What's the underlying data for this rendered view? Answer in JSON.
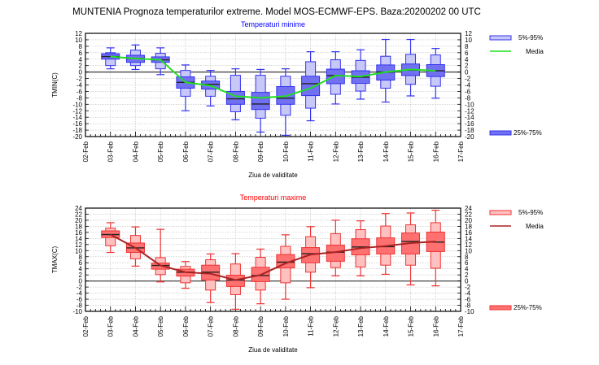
{
  "page": {
    "title": "MUNTENIA  Prognoza temperaturilor extreme.  Model MOS-ECMWF-EPS. Baza:20200202 00 UTC"
  },
  "chart_data": [
    {
      "type": "boxplot",
      "title": "Temperaturi minime",
      "title_color": "#0000ff",
      "ylabel": "TMIN(C)",
      "xlabel": "Ziua de validitate",
      "ylim": [
        -20,
        12
      ],
      "ytick_step": 2,
      "grid": true,
      "x_tick_labels": [
        "02-Feb",
        "03-Feb",
        "04-Feb",
        "05-Feb",
        "06-Feb",
        "07-Feb",
        "08-Feb",
        "09-Feb",
        "10-Feb",
        "11-Feb",
        "12-Feb",
        "13-Feb",
        "14-Feb",
        "15-Feb",
        "16-Feb",
        "17-Feb"
      ],
      "categories": [
        "03-Feb",
        "04-Feb",
        "05-Feb",
        "06-Feb",
        "07-Feb",
        "08-Feb",
        "09-Feb",
        "10-Feb",
        "11-Feb",
        "12-Feb",
        "13-Feb",
        "14-Feb",
        "15-Feb",
        "16-Feb"
      ],
      "colors": {
        "outer": "#c8c8f8",
        "inner": "#7070f0",
        "edge": "#3333ee",
        "mean": "#22dd22",
        "median": "#222222"
      },
      "legend": {
        "outer_label": "5%-95%",
        "mean_label": "Media",
        "inner_label": "25%-75%",
        "placement": "right"
      },
      "series": {
        "whisker_low": [
          1.0,
          0.8,
          -0.8,
          -12.0,
          -10.5,
          -14.8,
          -18.6,
          -19.6,
          -15.1,
          -9.9,
          -8.4,
          -9.3,
          -7.4,
          -8.1
        ],
        "p5": [
          2.0,
          2.0,
          1.0,
          -7.5,
          -7.5,
          -12.3,
          -14.3,
          -13.4,
          -11.2,
          -6.9,
          -5.9,
          -5.0,
          -3.8,
          -4.4
        ],
        "p25": [
          4.0,
          3.0,
          3.0,
          -5.0,
          -5.3,
          -10.0,
          -11.6,
          -10.0,
          -7.3,
          -3.6,
          -3.5,
          -2.5,
          -1.1,
          -1.4
        ],
        "median": [
          4.8,
          4.2,
          3.8,
          -3.2,
          -3.8,
          -8.3,
          -9.9,
          -8.1,
          -3.6,
          -1.1,
          -1.6,
          0.0,
          0.6,
          0.4
        ],
        "p75": [
          5.7,
          5.2,
          4.7,
          -1.5,
          -2.8,
          -6.0,
          -6.3,
          -4.5,
          -1.3,
          0.9,
          0.4,
          2.2,
          2.5,
          2.3
        ],
        "p95": [
          6.0,
          6.8,
          5.8,
          0.5,
          -1.3,
          -1.0,
          -1.0,
          -1.3,
          3.2,
          3.8,
          3.6,
          4.9,
          5.5,
          5.3
        ],
        "whisker_high": [
          7.5,
          8.4,
          7.5,
          2.2,
          0.5,
          1.0,
          0.8,
          1.0,
          6.3,
          6.3,
          6.9,
          10.1,
          10.1,
          7.3
        ],
        "mean": [
          4.8,
          4.2,
          3.8,
          -3.2,
          -4.2,
          -7.5,
          -8.0,
          -7.5,
          -5.0,
          -1.1,
          -1.4,
          0.0,
          0.8,
          0.4
        ]
      }
    },
    {
      "type": "boxplot",
      "title": "Temperaturi maxime",
      "title_color": "#ff0000",
      "ylabel": "TMAX(C)",
      "xlabel": "Ziua de validitate",
      "ylim": [
        -10,
        24
      ],
      "ytick_step": 2,
      "grid": true,
      "x_tick_labels": [
        "02-Feb",
        "03-Feb",
        "04-Feb",
        "05-Feb",
        "06-Feb",
        "07-Feb",
        "08-Feb",
        "09-Feb",
        "10-Feb",
        "11-Feb",
        "12-Feb",
        "13-Feb",
        "14-Feb",
        "15-Feb",
        "16-Feb",
        "17-Feb"
      ],
      "categories": [
        "03-Feb",
        "04-Feb",
        "05-Feb",
        "06-Feb",
        "07-Feb",
        "08-Feb",
        "09-Feb",
        "10-Feb",
        "11-Feb",
        "12-Feb",
        "13-Feb",
        "14-Feb",
        "15-Feb",
        "16-Feb"
      ],
      "colors": {
        "outer": "#ffc0c0",
        "inner": "#ff7070",
        "edge": "#ee3333",
        "mean": "#aa2222",
        "median": "#222222"
      },
      "legend": {
        "outer_label": "5%-95%",
        "mean_label": "Media",
        "inner_label": "25%-75%",
        "placement": "right"
      },
      "series": {
        "whisker_low": [
          9.4,
          4.9,
          -0.3,
          -2.4,
          -7.1,
          -9.3,
          -7.5,
          -6.0,
          -2.2,
          1.7,
          1.7,
          2.2,
          -1.3,
          -1.6
        ],
        "p5": [
          11.6,
          7.3,
          2.1,
          -0.6,
          -3.0,
          -4.5,
          -3.0,
          -0.6,
          2.9,
          4.4,
          4.6,
          5.2,
          5.2,
          4.2
        ],
        "p25": [
          14.3,
          9.4,
          3.9,
          1.6,
          0.3,
          -1.8,
          -0.2,
          4.3,
          6.0,
          6.5,
          8.6,
          8.9,
          8.9,
          9.7
        ],
        "median": [
          15.3,
          10.9,
          5.1,
          2.9,
          2.9,
          0.3,
          1.8,
          6.2,
          9.0,
          9.5,
          11.2,
          11.3,
          13.0,
          12.8
        ],
        "p75": [
          16.5,
          12.5,
          5.9,
          3.9,
          5.2,
          1.9,
          4.5,
          8.7,
          11.0,
          11.8,
          13.9,
          14.2,
          15.8,
          16.1
        ],
        "p95": [
          17.4,
          15.0,
          7.7,
          4.8,
          7.0,
          5.6,
          7.8,
          11.4,
          14.6,
          15.6,
          16.9,
          18.1,
          18.5,
          19.2
        ],
        "whisker_high": [
          19.2,
          17.8,
          17.0,
          6.4,
          8.9,
          9.0,
          10.5,
          15.2,
          17.9,
          20.0,
          19.8,
          22.2,
          22.4,
          23.3
        ],
        "mean": [
          15.3,
          10.9,
          5.1,
          2.9,
          2.4,
          0.3,
          2.0,
          5.8,
          8.7,
          9.5,
          10.8,
          11.5,
          12.5,
          13.0
        ]
      }
    }
  ]
}
